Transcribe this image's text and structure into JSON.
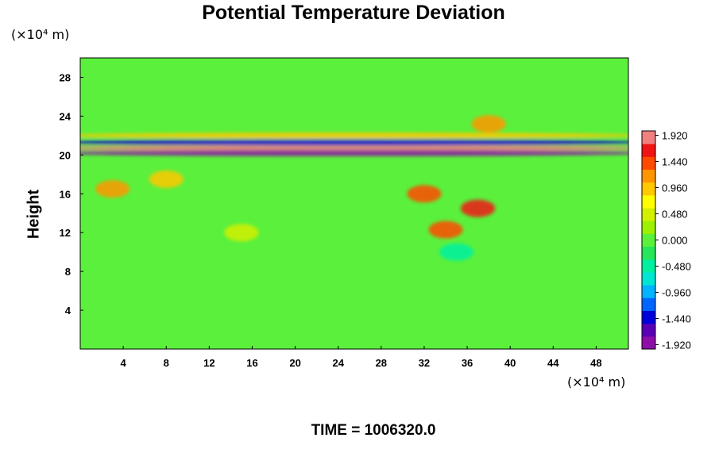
{
  "chart_data": {
    "type": "heatmap",
    "title": "Potential Temperature Deviation",
    "ylabel": "Height",
    "x_unit": "(×10⁴ m)",
    "y_unit": "(×10⁴ m)",
    "xlim": [
      0,
      51
    ],
    "ylim": [
      0,
      30
    ],
    "x_ticks": [
      "4",
      "8",
      "12",
      "16",
      "20",
      "24",
      "28",
      "32",
      "36",
      "40",
      "44",
      "48"
    ],
    "y_ticks": [
      "4",
      "8",
      "12",
      "16",
      "20",
      "24",
      "28"
    ],
    "colorbar": {
      "min": -2.0,
      "max": 2.0,
      "tick_labels": [
        "1.920",
        "1.440",
        "0.960",
        "0.480",
        "0.000",
        "-0.480",
        "-0.960",
        "-1.440",
        "-1.920"
      ],
      "colors": [
        "#8e0ea8",
        "#5a00b4",
        "#0000d8",
        "#0064ff",
        "#00b4ff",
        "#00e6d2",
        "#00f0a0",
        "#26e65a",
        "#5af03c",
        "#9cf000",
        "#d2f000",
        "#ffff00",
        "#ffc800",
        "#ff9600",
        "#ff4b00",
        "#f01414",
        "#f08080"
      ]
    },
    "features": [
      {
        "x": 25,
        "y": 20.7,
        "value": 1.92
      },
      {
        "x": 25,
        "y": 20.2,
        "value": -1.92
      },
      {
        "x": 25,
        "y": 21.3,
        "value": -1.5
      },
      {
        "x": 25,
        "y": 22.0,
        "value": 1.0
      },
      {
        "x": 38,
        "y": 23.2,
        "value": 1.2
      },
      {
        "x": 32,
        "y": 16.0,
        "value": 1.5
      },
      {
        "x": 37,
        "y": 14.5,
        "value": 1.8
      },
      {
        "x": 34,
        "y": 12.3,
        "value": 1.6
      },
      {
        "x": 3,
        "y": 16.5,
        "value": 1.2
      },
      {
        "x": 8,
        "y": 17.5,
        "value": 0.9
      },
      {
        "x": 15,
        "y": 12.0,
        "value": 0.6
      },
      {
        "x": 35,
        "y": 10.0,
        "value": -0.5
      }
    ],
    "background_value": 0.0,
    "time_label": "TIME = 1006320.0"
  }
}
